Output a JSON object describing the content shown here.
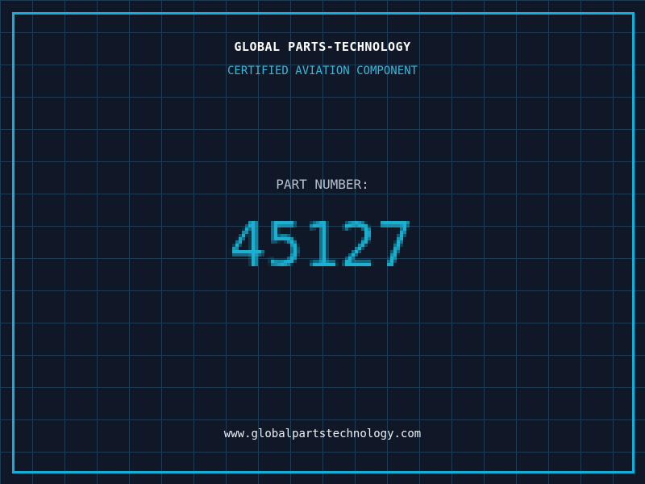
{
  "theme": {
    "background": "#101827",
    "grid_line": "#1d3c55",
    "frame": "#0fb1da",
    "title_color": "#ffffff",
    "subtitle_color": "#3eb5d6",
    "label_color": "#b6c0ce",
    "number_color": "#1bafd0",
    "footer_color": "#eef2f7"
  },
  "header": {
    "title": "GLOBAL PARTS-TECHNOLOGY",
    "subtitle": "CERTIFIED AVIATION COMPONENT"
  },
  "part": {
    "label": "PART NUMBER:",
    "number": "45127"
  },
  "footer": {
    "url": "www.globalpartstechnology.com"
  }
}
